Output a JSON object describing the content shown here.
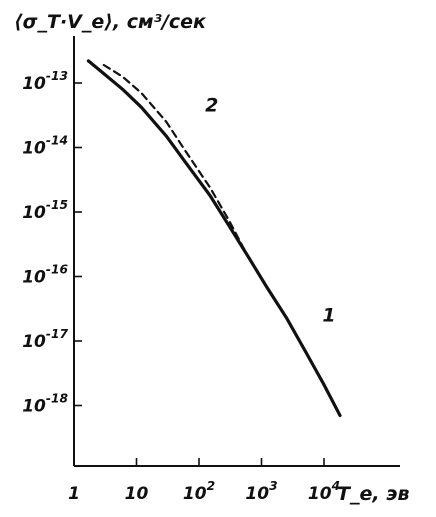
{
  "chart_data": {
    "type": "line",
    "title": "",
    "ylabel": "⟨σ_T·V_e⟩, см³/сек",
    "xlabel": "T_e, эв",
    "x_scale": "log",
    "y_scale": "log",
    "xlim": [
      1,
      20000
    ],
    "ylim": [
      1e-19,
      3e-13
    ],
    "x_ticks": [
      {
        "value": 1,
        "label": "1"
      },
      {
        "value": 10,
        "label": "10"
      },
      {
        "value": 100,
        "label": "10^2"
      },
      {
        "value": 1000,
        "label": "10^3"
      },
      {
        "value": 10000,
        "label": "10^4"
      }
    ],
    "y_ticks": [
      {
        "value": 1e-13,
        "label": "10^-13"
      },
      {
        "value": 1e-14,
        "label": "10^-14"
      },
      {
        "value": 1e-15,
        "label": "10^-15"
      },
      {
        "value": 1e-16,
        "label": "10^-16"
      },
      {
        "value": 1e-17,
        "label": "10^-17"
      },
      {
        "value": 1e-18,
        "label": "10^-18"
      }
    ],
    "series": [
      {
        "name": "1",
        "style": "solid",
        "color": "#111111",
        "x": [
          1.7,
          3,
          6,
          12,
          30,
          60,
          150,
          300,
          600,
          1200,
          2500,
          5000,
          10000,
          18000
        ],
        "y": [
          2.2e-13,
          1.4e-13,
          8e-14,
          4.2e-14,
          1.5e-14,
          6e-15,
          1.8e-15,
          6.2e-16,
          2.1e-16,
          7e-17,
          2.3e-17,
          7e-18,
          2.1e-18,
          7e-19
        ]
      },
      {
        "name": "2",
        "style": "dashed",
        "color": "#111111",
        "x": [
          3,
          6,
          12,
          30,
          60,
          150,
          300,
          600
        ],
        "y": [
          1.9e-13,
          1.25e-13,
          7e-14,
          2.5e-14,
          9e-15,
          2.4e-15,
          7.5e-16,
          2.1e-16
        ]
      }
    ],
    "annotations": [
      {
        "text": "1",
        "x": 12000,
        "y": 2e-17
      },
      {
        "text": "2",
        "x": 160,
        "y": 3.6e-14
      }
    ],
    "grid": false,
    "legend": "none"
  }
}
